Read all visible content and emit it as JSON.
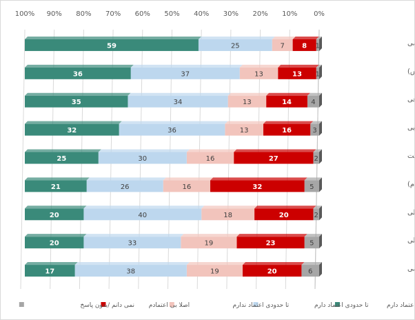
{
  "chart_data": {
    "type": "bar",
    "orientation": "horizontal-stacked-100",
    "direction": "right-to-left",
    "xlim": [
      0,
      100
    ],
    "tick_labels": [
      "100%",
      "90%",
      "80%",
      "70%",
      "60%",
      "50%",
      "40%",
      "30%",
      "20%",
      "10%",
      "0%"
    ],
    "grid": true,
    "legend_position": "bottom",
    "categories": [
      "نیروی نظامی",
      "امنیت عمومی (پلیس)",
      "دادگاه های شرعی",
      "دستگاه قضایی",
      "دولت",
      "مجلس(نمایندگان،شورا،مردم)",
      "رسانه های داخلی",
      "شوراهای شهر و محلی",
      "شرکت های بخش خصوصی"
    ],
    "series": [
      {
        "name": "بسیار اعتماد دارم",
        "color": "#3a8a7a",
        "values": [
          59,
          36,
          35,
          32,
          25,
          21,
          20,
          20,
          17
        ]
      },
      {
        "name": "تا حدودی اعتماد دارم",
        "color": "#bdd7ee",
        "values": [
          25,
          37,
          34,
          36,
          30,
          26,
          40,
          33,
          38
        ]
      },
      {
        "name": "تا حدودی اعتماد ندارم",
        "color": "#f2c4bc",
        "values": [
          7,
          13,
          13,
          13,
          16,
          16,
          18,
          19,
          19
        ]
      },
      {
        "name": "اصلا بی اعتمادم",
        "color": "#cc0000",
        "values": [
          8,
          13,
          14,
          16,
          27,
          32,
          20,
          23,
          20
        ]
      },
      {
        "name": "نمی دانم /بدون پاسخ",
        "color": "#a6a6a6",
        "values": [
          1,
          1,
          4,
          3,
          2,
          5,
          2,
          5,
          6
        ]
      }
    ]
  }
}
